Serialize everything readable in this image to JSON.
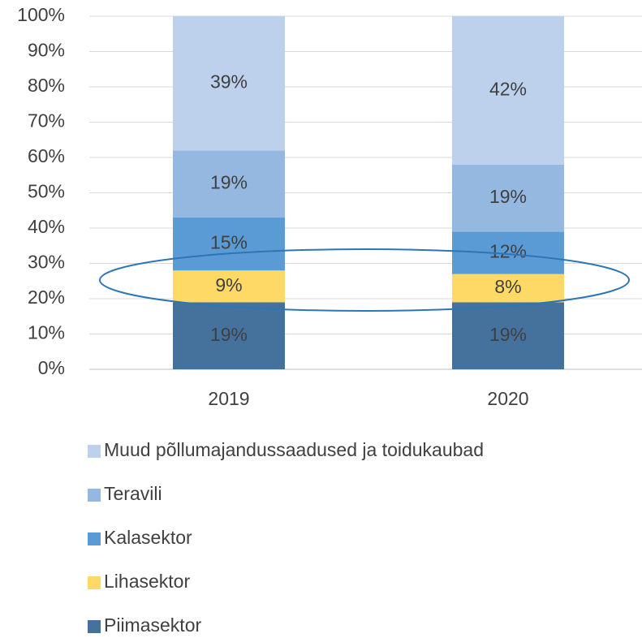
{
  "chart_data": {
    "type": "stacked_bar",
    "categories": [
      "2019",
      "2020"
    ],
    "series": [
      {
        "name": "Piimasektor",
        "color": "#44729d",
        "values": [
          19,
          19
        ],
        "value_labels": [
          "19%",
          "19%"
        ]
      },
      {
        "name": "Lihasektor",
        "color": "#ffd966",
        "values": [
          9,
          8
        ],
        "value_labels": [
          "9%",
          "8%"
        ]
      },
      {
        "name": "Kalasektor",
        "color": "#5b9bd5",
        "values": [
          15,
          12
        ],
        "value_labels": [
          "15%",
          "12%"
        ]
      },
      {
        "name": "Teravili",
        "color": "#95b8e1",
        "values": [
          19,
          19
        ],
        "value_labels": [
          "19%",
          "19%"
        ]
      },
      {
        "name": "Muud põllumajandussaadused ja toidukaubad",
        "color": "#bdd0ec",
        "values": [
          39,
          42
        ],
        "value_labels": [
          "39%",
          "42%"
        ]
      }
    ],
    "ylim": [
      0,
      100
    ],
    "yticks": [
      {
        "value": 0,
        "label": "0%"
      },
      {
        "value": 10,
        "label": "10%"
      },
      {
        "value": 20,
        "label": "20%"
      },
      {
        "value": 30,
        "label": "30%"
      },
      {
        "value": 40,
        "label": "40%"
      },
      {
        "value": 50,
        "label": "50%"
      },
      {
        "value": 60,
        "label": "60%"
      },
      {
        "value": 70,
        "label": "70%"
      },
      {
        "value": 80,
        "label": "80%"
      },
      {
        "value": 90,
        "label": "90%"
      },
      {
        "value": 100,
        "label": "100%"
      }
    ],
    "grid": true,
    "legend": "bottom"
  }
}
